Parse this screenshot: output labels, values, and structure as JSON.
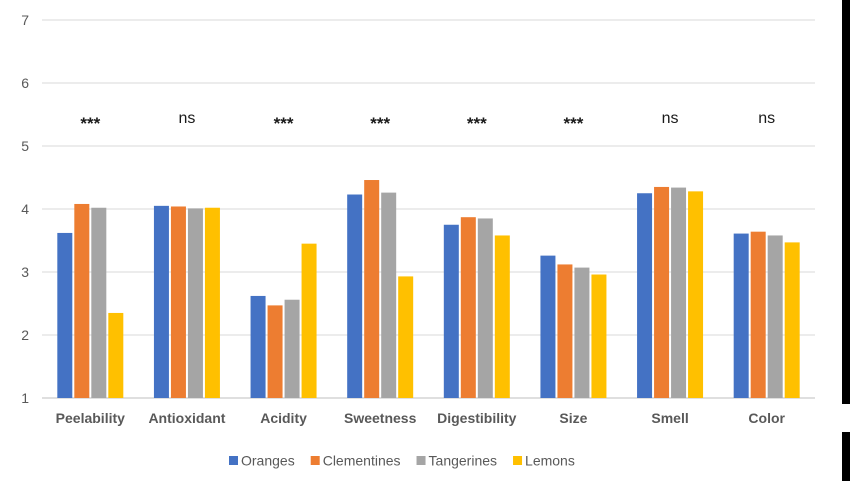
{
  "chart_data": {
    "type": "bar",
    "title": "",
    "xlabel": "",
    "ylabel": "",
    "ylim": [
      1,
      7
    ],
    "yticks": [
      1,
      2,
      3,
      4,
      5,
      6,
      7
    ],
    "grid": true,
    "legend_position": "bottom",
    "categories": [
      "Peelability",
      "Antioxidant",
      "Acidity",
      "Sweetness",
      "Digestibility",
      "Size",
      "Smell",
      "Color"
    ],
    "significance": [
      "***",
      "ns",
      "***",
      "***",
      "***",
      "***",
      "ns",
      "ns"
    ],
    "series": [
      {
        "name": "Oranges",
        "color": "#4472C4",
        "values": [
          3.62,
          4.05,
          2.62,
          4.23,
          3.75,
          3.26,
          4.25,
          3.61
        ]
      },
      {
        "name": "Clementines",
        "color": "#ED7D31",
        "values": [
          4.08,
          4.04,
          2.47,
          4.46,
          3.87,
          3.12,
          4.35,
          3.64
        ]
      },
      {
        "name": "Tangerines",
        "color": "#A5A5A5",
        "values": [
          4.02,
          4.01,
          2.56,
          4.26,
          3.85,
          3.07,
          4.34,
          3.58
        ]
      },
      {
        "name": "Lemons",
        "color": "#FFC000",
        "values": [
          2.35,
          4.02,
          3.45,
          2.93,
          3.58,
          2.96,
          4.28,
          3.47
        ]
      }
    ]
  }
}
